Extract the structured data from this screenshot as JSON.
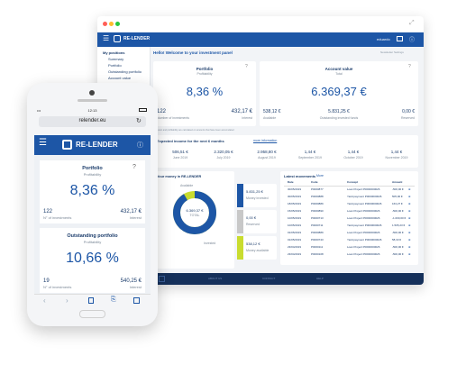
{
  "desktop": {
    "brand": "RE-LENDER",
    "header_right": "eduardo",
    "sidebar": {
      "section": "My positions",
      "items": [
        "Summary",
        "Portfolio",
        "Outstanding portfolio",
        "Account value"
      ]
    },
    "welcome": "Hello! Welcome to your investment panel",
    "top_right": "Newsletter  Settings",
    "portfolio": {
      "title": "Portfolio",
      "subtitle": "Profitability",
      "value": "8,36 %",
      "investments_count": "122",
      "investments_label": "Number of investments",
      "interest_value": "432,17 €",
      "interest_label": "Interest"
    },
    "account": {
      "title": "Account value",
      "subtitle": "Total",
      "value": "6.369,37 €",
      "available_value": "538,12 €",
      "available_label": "Available",
      "outstanding_value": "5.831,25 €",
      "outstanding_label": "Outstanding invested funds",
      "reserved_value": "0,00 €",
      "reserved_label": "Reserved"
    },
    "note": "* Interest and profitability are calculated on amounts that have been accumulated",
    "income": {
      "title": "Expected income for the next 6 months",
      "more": "more information",
      "months": [
        {
          "value": "506,51 €",
          "label": "June 2019"
        },
        {
          "value": "2.320,05 €",
          "label": "July 2019"
        },
        {
          "value": "2.958,80 €",
          "label": "August 2019"
        },
        {
          "value": "1,44 €",
          "label": "September 2019"
        },
        {
          "value": "1,44 €",
          "label": "October 2019"
        },
        {
          "value": "1,44 €",
          "label": "November 2019"
        }
      ]
    },
    "money": {
      "title": "Your money in RE-LENDER",
      "donut_value": "6.369,37 €",
      "donut_label": "TOTAL",
      "label_available": "Available",
      "label_invested": "Invested",
      "legend": [
        {
          "value": "5.831,25 €",
          "label": "Money invested",
          "color": "#1d56a6"
        },
        {
          "value": "0,00 €",
          "label": "Reserved",
          "color": "#c8c8c8"
        },
        {
          "value": "538,12 €",
          "label": "Money available",
          "color": "#c9dc2f"
        }
      ]
    },
    "movements": {
      "title": "Latest movements",
      "more": "More",
      "headers": [
        "Date",
        "Code",
        "Concept",
        "Amount"
      ],
      "rows": [
        [
          "30/05/2019",
          "P0000877",
          "Loan Project P0000000026",
          "-500,00 €"
        ],
        [
          "30/05/2019",
          "P0000888",
          "Yield payment P0000000026",
          "505,00 €"
        ],
        [
          "18/05/2019",
          "P0000889",
          "Yield payment P0000000026",
          "163,27 €"
        ],
        [
          "15/05/2019",
          "P0000890",
          "Loan Project P0000000026",
          "-500,00 €"
        ],
        [
          "10/05/2019",
          "P0000713",
          "Loan Project P0000000026",
          "-1.000,00 €"
        ],
        [
          "10/05/2019",
          "P0000711",
          "Yield payment P0000000026",
          "1.505,23 €"
        ],
        [
          "01/05/2019",
          "P0000889",
          "Loan Project P0000000026",
          "-500,00 €"
        ],
        [
          "01/05/2019",
          "P0000743",
          "Yield payment P0000000026",
          "58,33 €"
        ],
        [
          "23/04/2019",
          "P0000111",
          "Loan Project P0000000026",
          "-500,00 €"
        ],
        [
          "23/04/2019",
          "P0000108",
          "Loan Project P0000000026",
          "-500,00 €"
        ]
      ]
    },
    "footer": [
      "ABOUT US",
      "CONTACT",
      "HELP"
    ]
  },
  "phone": {
    "time": "12:13",
    "url": "relender.eu",
    "brand": "RE-LENDER",
    "portfolio": {
      "title": "Portfolio",
      "subtitle": "Profitability",
      "value": "8,36 %",
      "count": "122",
      "count_label": "N° of investments",
      "interest": "432,17 €",
      "interest_label": "Interest"
    },
    "outstanding": {
      "title": "Outstanding portfolio",
      "subtitle": "Profitability",
      "value": "10,66 %",
      "count": "19",
      "count_label": "N° of investments",
      "interest": "540,25 €",
      "interest_label": "Interest"
    }
  },
  "colors": {
    "brand_blue": "#1d56a6",
    "lime": "#c9dc2f",
    "navy": "#15305a"
  }
}
